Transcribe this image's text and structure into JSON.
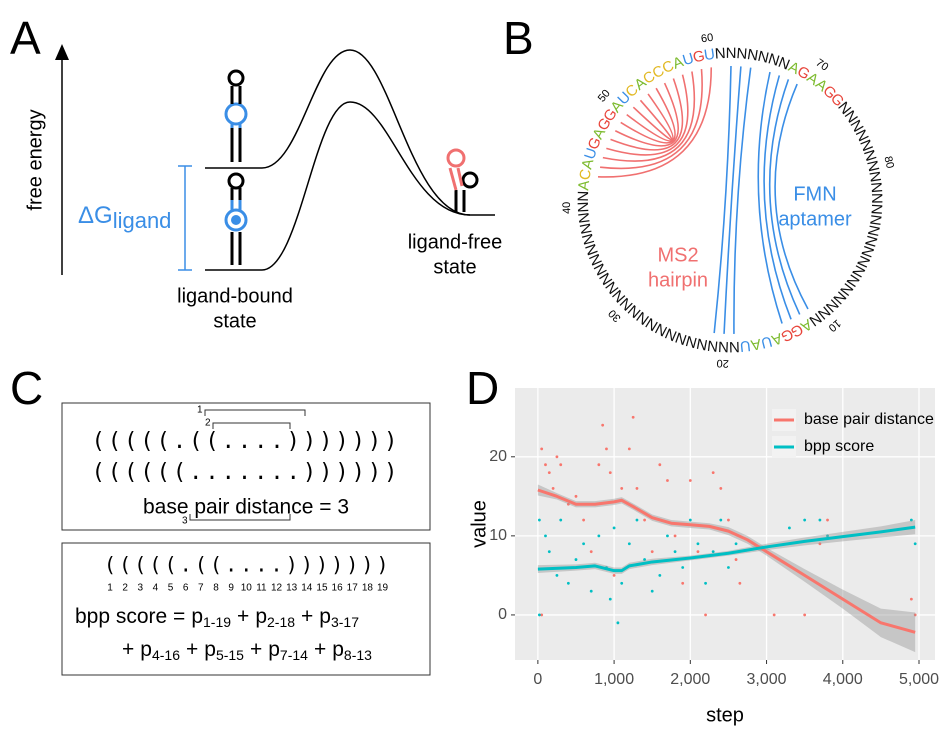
{
  "panels": {
    "A": {
      "letter": "A",
      "axis_label": "free energy",
      "delta": "ΔG",
      "delta_sub": "ligand",
      "bound_label": [
        "ligand-bound",
        "state"
      ],
      "free_label": [
        "ligand-free",
        "state"
      ]
    },
    "B": {
      "letter": "B",
      "sequence": [
        "N",
        "N",
        "N",
        "N",
        "N",
        "N",
        "N",
        "N",
        "N",
        "N",
        "N",
        "A",
        "G",
        "G",
        "A",
        "U",
        "A",
        "U",
        "N",
        "N",
        "N",
        "N",
        "N",
        "N",
        "N",
        "N",
        "N",
        "N",
        "N",
        "N",
        "N",
        "N",
        "N",
        "N",
        "N",
        "N",
        "N",
        "N",
        "N",
        "N",
        "N",
        "A",
        "C",
        "A",
        "U",
        "G",
        "A",
        "G",
        "G",
        "A",
        "U",
        "C",
        "A",
        "C",
        "C",
        "C",
        "A",
        "U",
        "G",
        "U",
        "N",
        "N",
        "N",
        "N",
        "N",
        "N",
        "N",
        "A",
        "G",
        "A",
        "A",
        "G",
        "G",
        "N",
        "N",
        "N",
        "N",
        "N",
        "N",
        "N",
        "N",
        "N",
        "N",
        "N",
        "N"
      ],
      "colors": {
        "A": "#7dbb2f",
        "C": "#e2b923",
        "G": "#e8443a",
        "U": "#3a8ee6",
        "N": "#111111"
      },
      "ticks": [
        10,
        20,
        30,
        40,
        50,
        60,
        70,
        80
      ],
      "ms2_label": [
        "MS2",
        "hairpin"
      ],
      "ms2_color": "#f07070",
      "fmn_label": [
        "FMN",
        "aptamer"
      ],
      "fmn_color": "#3a8ee6",
      "ms2_pairs": [
        [
          43,
          60
        ],
        [
          44,
          59
        ],
        [
          45,
          58
        ],
        [
          46,
          57
        ],
        [
          47,
          56
        ],
        [
          48,
          55
        ],
        [
          49,
          54
        ],
        [
          50,
          53
        ],
        [
          51,
          52
        ]
      ],
      "fmn_pairs": [
        [
          19,
          64
        ],
        [
          20,
          63
        ],
        [
          21,
          62
        ],
        [
          11,
          69
        ],
        [
          12,
          68
        ],
        [
          13,
          67
        ],
        [
          14,
          66
        ]
      ]
    },
    "C": {
      "letter": "C",
      "structure_1": "(((((.((....)))))))",
      "structure_2": "((((((.......))))))",
      "diff_labels": [
        "1",
        "2",
        "3"
      ],
      "distance_label": "base pair distance = 3",
      "positions": [
        1,
        2,
        3,
        4,
        5,
        6,
        7,
        8,
        9,
        10,
        11,
        12,
        13,
        14,
        15,
        16,
        17,
        18,
        19
      ],
      "bpp": {
        "label": "bpp score =",
        "symbol": "p",
        "op": "+",
        "terms": [
          "1-19",
          "2-18",
          "3-17",
          "4-16",
          "5-15",
          "7-14",
          "8-13"
        ]
      }
    },
    "D": {
      "letter": "D"
    }
  },
  "chart_data": {
    "type": "line",
    "xlabel": "step",
    "ylabel": "value",
    "xlim": [
      -300,
      5210
    ],
    "ylim": [
      -5.7,
      28.7
    ],
    "xticks": [
      0,
      {
        "value": 1000,
        "label": "1,000"
      },
      {
        "value": 2000,
        "label": "2,000"
      },
      {
        "value": 3000,
        "label": "3,000"
      },
      {
        "value": 4000,
        "label": "4,000"
      },
      {
        "value": 5000,
        "label": "5,000"
      }
    ],
    "yticks": [
      0,
      10,
      20
    ],
    "grid": true,
    "legend": "top-right",
    "series": [
      {
        "name": "base pair distance",
        "color": "#f8766d",
        "x": [
          0,
          250,
          500,
          750,
          1000,
          1100,
          1250,
          1500,
          1750,
          2000,
          2250,
          2500,
          2750,
          3000,
          3500,
          4000,
          4500,
          4950
        ],
        "values": [
          15.8,
          15,
          14,
          14,
          14.3,
          14.5,
          13.7,
          12.3,
          11.6,
          11.4,
          11.2,
          10.6,
          9.5,
          8,
          5,
          2,
          -1,
          -2.2
        ],
        "lower": [
          15.1,
          14.6,
          13.6,
          13.6,
          13.9,
          14.1,
          13.3,
          11.9,
          11.2,
          11,
          10.8,
          10.1,
          9,
          7.5,
          4.2,
          0.8,
          -2.8,
          -4.7
        ],
        "upper": [
          16.5,
          15.4,
          14.4,
          14.4,
          14.7,
          14.9,
          14.1,
          12.7,
          12,
          11.8,
          11.6,
          11.1,
          10,
          8.5,
          5.8,
          3.2,
          0.8,
          0.3
        ],
        "points_x": [
          50,
          100,
          150,
          200,
          250,
          300,
          50,
          400,
          500,
          600,
          700,
          800,
          850,
          900,
          950,
          1000,
          1100,
          1200,
          1250,
          1300,
          1400,
          1500,
          1600,
          1700,
          1800,
          1900,
          2000,
          2100,
          2200,
          2300,
          2400,
          2500,
          2600,
          2650,
          3100,
          3500,
          3700,
          3800,
          4900,
          4950
        ],
        "points_y": [
          21,
          19,
          18,
          16,
          20,
          19,
          0,
          14,
          15,
          12,
          8,
          19,
          24,
          21,
          18,
          5,
          16,
          21,
          25,
          16,
          12,
          8,
          19,
          17,
          10,
          4,
          17,
          8,
          0,
          18,
          16,
          12,
          7,
          4,
          0,
          0,
          9,
          12,
          2,
          0
        ]
      },
      {
        "name": "bpp score",
        "color": "#00bfc4",
        "x": [
          0,
          500,
          750,
          1000,
          1100,
          1200,
          1500,
          2000,
          2500,
          3000,
          3500,
          4000,
          4500,
          4950
        ],
        "values": [
          5.8,
          6,
          6.2,
          5.6,
          5.6,
          6.2,
          6.7,
          7.2,
          7.8,
          8.6,
          9.3,
          9.9,
          10.5,
          11.1
        ],
        "lower": [
          5.3,
          5.6,
          5.8,
          5.2,
          5.2,
          5.8,
          6.3,
          6.9,
          7.5,
          8.2,
          8.8,
          9.3,
          9.8,
          10.2
        ],
        "upper": [
          6.3,
          6.4,
          6.6,
          6,
          6,
          6.6,
          7.1,
          7.5,
          8.1,
          9,
          9.8,
          10.5,
          11.2,
          12
        ],
        "points_x": [
          20,
          20,
          100,
          150,
          250,
          300,
          400,
          500,
          600,
          700,
          800,
          900,
          950,
          1000,
          1050,
          1100,
          1200,
          1300,
          1400,
          1500,
          1600,
          1700,
          1800,
          1900,
          2000,
          2100,
          2200,
          2300,
          2400,
          2500,
          2600,
          3300,
          3500,
          3700,
          3800,
          4900,
          4950
        ],
        "points_y": [
          0,
          12,
          10,
          8,
          5,
          12,
          4,
          7,
          9,
          3,
          10,
          6,
          2,
          11,
          -1,
          4,
          9,
          12,
          7,
          3,
          5,
          10,
          8,
          6,
          12,
          9,
          4,
          8,
          12,
          6,
          9,
          11,
          12,
          12,
          10,
          12,
          9
        ]
      }
    ]
  }
}
